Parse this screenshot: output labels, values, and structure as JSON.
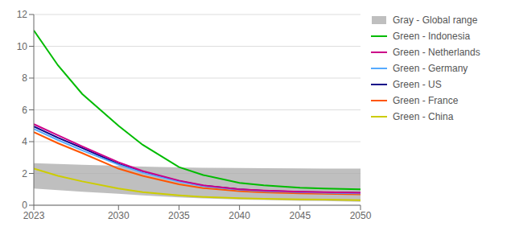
{
  "chart_data": {
    "type": "line",
    "x": [
      2023,
      2025,
      2027,
      2030,
      2032,
      2035,
      2037,
      2040,
      2042,
      2045,
      2047,
      2050
    ],
    "series": [
      {
        "name": "Gray - Global range",
        "type": "range",
        "color": "#AAAAAA",
        "values": [
          [
            1.05,
            2.65
          ],
          [
            0.95,
            2.6
          ],
          [
            0.85,
            2.55
          ],
          [
            0.72,
            2.48
          ],
          [
            0.62,
            2.43
          ],
          [
            0.5,
            2.38
          ],
          [
            0.43,
            2.36
          ],
          [
            0.36,
            2.34
          ],
          [
            0.33,
            2.33
          ],
          [
            0.28,
            2.32
          ],
          [
            0.26,
            2.31
          ],
          [
            0.22,
            2.3
          ]
        ]
      },
      {
        "name": "Green - Indonesia",
        "type": "line",
        "color": "#00BB00",
        "values": [
          11.0,
          8.8,
          7.0,
          5.0,
          3.8,
          2.4,
          1.9,
          1.4,
          1.25,
          1.1,
          1.05,
          1.0
        ]
      },
      {
        "name": "Green - Netherlands",
        "type": "line",
        "color": "#CC0088",
        "values": [
          5.1,
          4.4,
          3.7,
          2.7,
          2.15,
          1.55,
          1.25,
          1.0,
          0.92,
          0.85,
          0.82,
          0.78
        ]
      },
      {
        "name": "Green - Germany",
        "type": "line",
        "color": "#55AAFF",
        "values": [
          4.8,
          4.1,
          3.45,
          2.55,
          2.05,
          1.48,
          1.2,
          0.97,
          0.89,
          0.82,
          0.79,
          0.75
        ]
      },
      {
        "name": "Green - US",
        "type": "line",
        "color": "#110088",
        "values": [
          4.95,
          4.25,
          3.6,
          2.6,
          2.1,
          1.52,
          1.23,
          1.0,
          0.91,
          0.84,
          0.81,
          0.77
        ]
      },
      {
        "name": "Green - France",
        "type": "line",
        "color": "#FF5500",
        "values": [
          4.6,
          3.9,
          3.28,
          2.3,
          1.85,
          1.32,
          1.08,
          0.88,
          0.81,
          0.75,
          0.72,
          0.68
        ]
      },
      {
        "name": "Green - China",
        "type": "line",
        "color": "#CCCC00",
        "values": [
          2.3,
          1.85,
          1.5,
          1.05,
          0.82,
          0.62,
          0.52,
          0.44,
          0.41,
          0.37,
          0.35,
          0.32
        ]
      }
    ],
    "xlim": [
      2023,
      2050
    ],
    "xticks": [
      2023,
      2030,
      2035,
      2040,
      2045,
      2050
    ],
    "ylim": [
      0,
      12
    ],
    "yticks": [
      0,
      2,
      4,
      6,
      8,
      10,
      12
    ],
    "grid": "y",
    "legend": "right"
  }
}
